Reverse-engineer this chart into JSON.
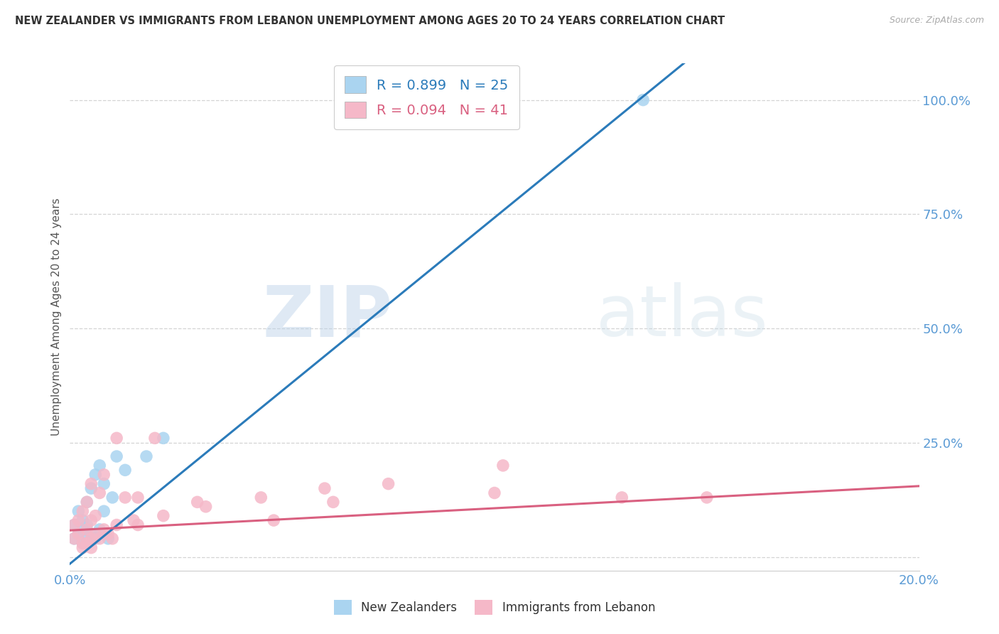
{
  "title": "NEW ZEALANDER VS IMMIGRANTS FROM LEBANON UNEMPLOYMENT AMONG AGES 20 TO 24 YEARS CORRELATION CHART",
  "source": "Source: ZipAtlas.com",
  "ylabel": "Unemployment Among Ages 20 to 24 years",
  "blue_label": "New Zealanders",
  "pink_label": "Immigrants from Lebanon",
  "blue_R": 0.899,
  "blue_N": 25,
  "pink_R": 0.094,
  "pink_N": 41,
  "blue_color": "#aad4f0",
  "pink_color": "#f5b8c8",
  "blue_line_color": "#2b7bba",
  "pink_line_color": "#d96080",
  "watermark_zip": "ZIP",
  "watermark_atlas": "atlas",
  "xlim": [
    0.0,
    0.2
  ],
  "ylim": [
    -0.03,
    1.08
  ],
  "yticks": [
    0.0,
    0.25,
    0.5,
    0.75,
    1.0
  ],
  "ytick_labels": [
    "",
    "25.0%",
    "50.0%",
    "75.0%",
    "100.0%"
  ],
  "xticks": [
    0.0,
    0.04,
    0.08,
    0.12,
    0.16,
    0.2
  ],
  "xtick_labels": [
    "0.0%",
    "",
    "",
    "",
    "",
    "20.0%"
  ],
  "blue_x": [
    0.001,
    0.001,
    0.002,
    0.002,
    0.003,
    0.003,
    0.003,
    0.004,
    0.004,
    0.004,
    0.005,
    0.005,
    0.006,
    0.006,
    0.007,
    0.007,
    0.008,
    0.008,
    0.009,
    0.01,
    0.011,
    0.013,
    0.018,
    0.022,
    0.135
  ],
  "blue_y": [
    0.04,
    0.07,
    0.05,
    0.1,
    0.03,
    0.06,
    0.08,
    0.04,
    0.07,
    0.12,
    0.05,
    0.15,
    0.04,
    0.18,
    0.06,
    0.2,
    0.1,
    0.16,
    0.04,
    0.13,
    0.22,
    0.19,
    0.22,
    0.26,
    1.0
  ],
  "pink_x": [
    0.001,
    0.001,
    0.002,
    0.002,
    0.003,
    0.003,
    0.004,
    0.004,
    0.005,
    0.005,
    0.005,
    0.006,
    0.006,
    0.007,
    0.007,
    0.008,
    0.008,
    0.009,
    0.01,
    0.011,
    0.011,
    0.013,
    0.015,
    0.016,
    0.016,
    0.02,
    0.022,
    0.03,
    0.032,
    0.045,
    0.048,
    0.06,
    0.062,
    0.075,
    0.1,
    0.102,
    0.13,
    0.15,
    0.003,
    0.004,
    0.005
  ],
  "pink_y": [
    0.04,
    0.07,
    0.05,
    0.08,
    0.03,
    0.1,
    0.06,
    0.12,
    0.04,
    0.08,
    0.16,
    0.05,
    0.09,
    0.04,
    0.14,
    0.06,
    0.18,
    0.05,
    0.04,
    0.07,
    0.26,
    0.13,
    0.08,
    0.07,
    0.13,
    0.26,
    0.09,
    0.12,
    0.11,
    0.13,
    0.08,
    0.15,
    0.12,
    0.16,
    0.14,
    0.2,
    0.13,
    0.13,
    0.02,
    0.03,
    0.02
  ],
  "blue_line_x": [
    0.0,
    0.2
  ],
  "blue_line_y": [
    -0.015,
    1.5
  ],
  "pink_line_x": [
    0.0,
    0.2
  ],
  "pink_line_y": [
    0.058,
    0.155
  ]
}
